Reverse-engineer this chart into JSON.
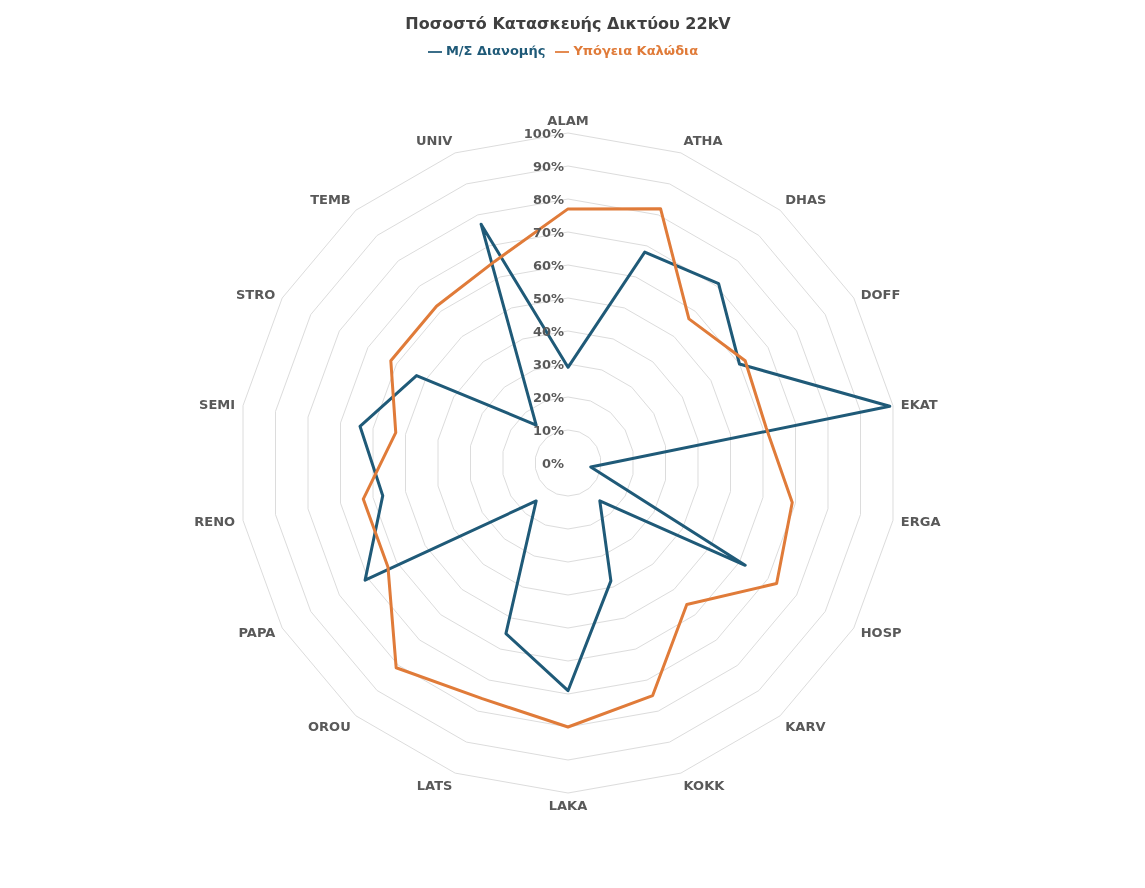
{
  "chart_data": {
    "type": "radar",
    "title": "Ποσοστό Κατασκευής Δικτύου 22kV",
    "categories": [
      "ALAM",
      "ATHA",
      "DHAS",
      "DOFF",
      "EKAT",
      "ERGA",
      "HOSP",
      "KARV",
      "KOKK",
      "LAKA",
      "LATS",
      "OROU",
      "PAPA",
      "RENO",
      "SEMI",
      "STRO",
      "TEMB",
      "UNIV"
    ],
    "series": [
      {
        "name": "Μ/Σ Διανομής",
        "color": "#1f5a78",
        "values": [
          29,
          68,
          71,
          60,
          99,
          7,
          62,
          15,
          38,
          69,
          55,
          15,
          71,
          57,
          64,
          53,
          15,
          77
        ]
      },
      {
        "name": "Υπόγεια Καλώδια",
        "color": "#e07b39",
        "values": [
          77,
          82,
          57,
          62,
          61,
          69,
          73,
          56,
          75,
          80,
          76,
          81,
          63,
          63,
          53,
          62,
          62,
          65
        ]
      }
    ],
    "ylim": [
      0,
      100
    ],
    "yticks": [
      {
        "value": 0,
        "label": "0%"
      },
      {
        "value": 10,
        "label": "10%"
      },
      {
        "value": 20,
        "label": "20%"
      },
      {
        "value": 30,
        "label": "30%"
      },
      {
        "value": 40,
        "label": "40%"
      },
      {
        "value": 50,
        "label": "50%"
      },
      {
        "value": 60,
        "label": "60%"
      },
      {
        "value": 70,
        "label": "70%"
      },
      {
        "value": 80,
        "label": "80%"
      },
      {
        "value": 90,
        "label": "90%"
      },
      {
        "value": 100,
        "label": "100%"
      }
    ],
    "grid": true,
    "legend": "top",
    "marker": "none",
    "line_style": "solid"
  }
}
